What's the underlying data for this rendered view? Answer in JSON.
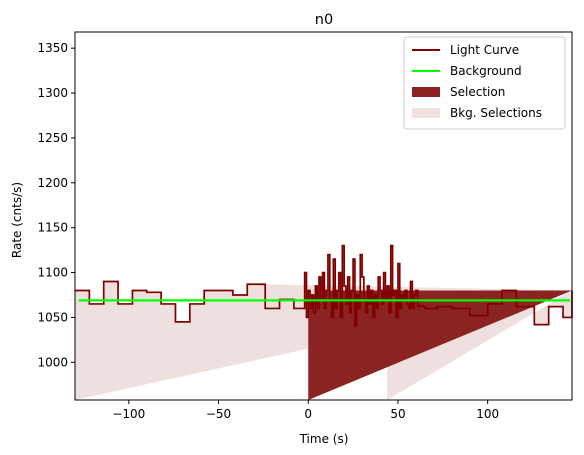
{
  "chart_data": {
    "type": "line",
    "title": "n0",
    "xlabel": "Time (s)",
    "ylabel": "Rate (cnts/s)",
    "xlim": [
      -130,
      147
    ],
    "ylim": [
      958,
      1368
    ],
    "xticks": [
      -100,
      -50,
      0,
      50,
      100
    ],
    "yticks": [
      1000,
      1050,
      1100,
      1150,
      1200,
      1250,
      1300,
      1350
    ],
    "xtick_labels": [
      "−100",
      "−50",
      "0",
      "50",
      "100"
    ],
    "ytick_labels": [
      "1000",
      "1050",
      "1100",
      "1150",
      "1200",
      "1250",
      "1300",
      "1350"
    ],
    "legend": {
      "placement": "top-right",
      "entries": [
        {
          "label": "Light Curve",
          "kind": "line",
          "color": "#800000"
        },
        {
          "label": "Background",
          "kind": "line",
          "color": "#00ff00"
        },
        {
          "label": "Selection",
          "kind": "patch",
          "color": "#8b2323"
        },
        {
          "label": "Bkg. Selections",
          "kind": "patch",
          "color": "#f0e0e0"
        }
      ]
    },
    "colors": {
      "light_curve": "#800000",
      "background": "#00ff00",
      "selection": "#8b2323",
      "bkg_selection": "#efe0e0"
    },
    "background_level": 1069,
    "background_range": [
      -128,
      146
    ],
    "selection_range": [
      0,
      10.5
    ],
    "bkg_selections": [
      [
        -130,
        -24
      ],
      [
        44,
        147
      ]
    ],
    "light_curve": {
      "edges": [
        -130,
        -122,
        -114,
        -106,
        -98,
        -90,
        -82,
        -74,
        -66,
        -58,
        -50,
        -42,
        -34,
        -24,
        -16,
        -8,
        -2,
        -1,
        0,
        1,
        2,
        3,
        4,
        5,
        6,
        7,
        8,
        9,
        10,
        11,
        12,
        13,
        14,
        15,
        16,
        17,
        18,
        19,
        20,
        21,
        22,
        23,
        24,
        25,
        26,
        27,
        28,
        29,
        30,
        31,
        32,
        33,
        34,
        35,
        36,
        37,
        38,
        39,
        40,
        41,
        42,
        43,
        44,
        45,
        46,
        47,
        48,
        49,
        50,
        51,
        52,
        53,
        54,
        55,
        56,
        57,
        58,
        59,
        60,
        61,
        62,
        63,
        64,
        65,
        66,
        72,
        80,
        90,
        100,
        108,
        116,
        126,
        134,
        142,
        147
      ],
      "values": [
        1080,
        1065,
        1090,
        1065,
        1080,
        1078,
        1065,
        1045,
        1065,
        1080,
        1080,
        1075,
        1087,
        1060,
        1070,
        1060,
        1100,
        1050,
        1080,
        1060,
        1075,
        1055,
        1085,
        1060,
        1095,
        1070,
        1100,
        1060,
        1080,
        1120,
        1070,
        1050,
        1115,
        1060,
        1080,
        1100,
        1050,
        1130,
        1085,
        1065,
        1095,
        1055,
        1080,
        1115,
        1040,
        1075,
        1060,
        1120,
        1095,
        1070,
        1055,
        1085,
        1065,
        1080,
        1050,
        1075,
        1060,
        1095,
        1080,
        1065,
        1100,
        1070,
        1085,
        1055,
        1130,
        1075,
        1080,
        1050,
        1110,
        1060,
        1075,
        1070,
        1080,
        1065,
        1060,
        1090,
        1060,
        1075,
        1080,
        1062,
        1063,
        1063,
        1062,
        1060,
        1060,
        1062,
        1060,
        1052,
        1065,
        1080,
        1062,
        1042,
        1062,
        1050,
        1080
      ]
    }
  }
}
